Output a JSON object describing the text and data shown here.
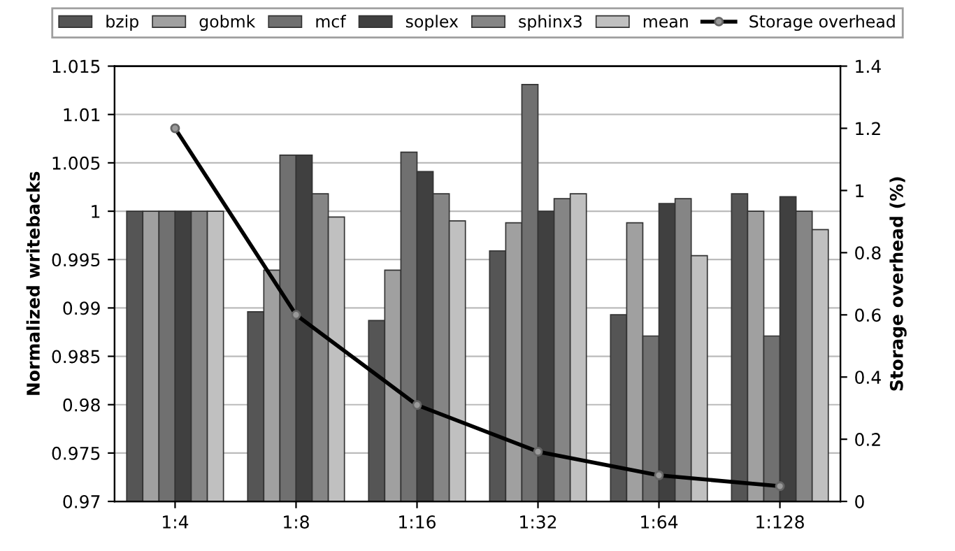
{
  "chart_data": {
    "type": "bar",
    "categories": [
      "1:4",
      "1:8",
      "1:16",
      "1:32",
      "1:64",
      "1:128"
    ],
    "ylabel": "Normalized writebacks",
    "y2label": "Storage overhead (%)",
    "series": [
      {
        "name": "bzip",
        "color": "#555555",
        "values": [
          1,
          0.9896,
          0.9887,
          0.9959,
          0.9893,
          1.0018
        ]
      },
      {
        "name": "gobmk",
        "color": "#a0a0a0",
        "values": [
          1,
          0.9939,
          0.9939,
          0.9988,
          0.9988,
          1.0
        ]
      },
      {
        "name": "mcf",
        "color": "#707070",
        "values": [
          1,
          1.0058,
          1.0061,
          1.0131,
          0.9871,
          0.9871
        ]
      },
      {
        "name": "soplex",
        "color": "#404040",
        "values": [
          1,
          1.0058,
          1.0041,
          1.0,
          1.0008,
          1.0015
        ]
      },
      {
        "name": "sphinx3",
        "color": "#858585",
        "values": [
          1,
          1.0018,
          1.0018,
          1.0013,
          1.0013,
          1.0
        ]
      },
      {
        "name": "mean",
        "color": "#c0c0c0",
        "values": [
          1,
          0.9994,
          0.999,
          1.0018,
          0.9954,
          0.9981
        ]
      },
      {
        "name": "Storage overhead",
        "type": "line",
        "axis": "y2",
        "color": "#000000",
        "marker": "circle",
        "values": [
          1.2,
          0.6,
          0.31,
          0.16,
          0.084,
          0.049
        ]
      }
    ],
    "ylim": [
      0.97,
      1.015
    ],
    "yticks": [
      0.97,
      0.975,
      0.98,
      0.985,
      0.99,
      0.995,
      1,
      1.005,
      1.01,
      1.015
    ],
    "y2lim": [
      0,
      1.4
    ],
    "y2ticks": [
      0,
      0.2,
      0.4,
      0.6,
      0.8,
      1,
      1.2,
      1.4
    ],
    "grid": "y",
    "legend": "top"
  }
}
